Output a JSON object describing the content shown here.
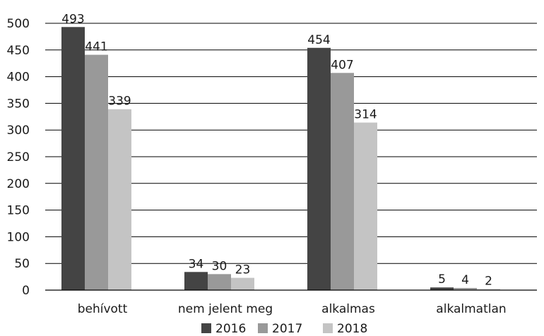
{
  "chart_data": {
    "type": "bar",
    "categories": [
      "behívott",
      "nem jelent meg",
      "alkalmas",
      "alkalmatlan"
    ],
    "series": [
      {
        "name": "2016",
        "values": [
          493,
          34,
          454,
          5
        ],
        "color": "#444444"
      },
      {
        "name": "2017",
        "values": [
          441,
          30,
          407,
          4
        ],
        "color": "#999999"
      },
      {
        "name": "2018",
        "values": [
          339,
          23,
          314,
          2
        ],
        "color": "#c4c4c4"
      }
    ],
    "title": "",
    "xlabel": "",
    "ylabel": "",
    "ylim": [
      0,
      500
    ],
    "yticks": [
      0,
      50,
      100,
      150,
      200,
      250,
      300,
      350,
      400,
      450,
      500
    ],
    "ytick_labels": [
      "0",
      "50",
      "100",
      "150",
      "200",
      "250",
      "300",
      "350",
      "400",
      "450",
      "500"
    ],
    "grid": true,
    "legend_position": "bottom"
  }
}
